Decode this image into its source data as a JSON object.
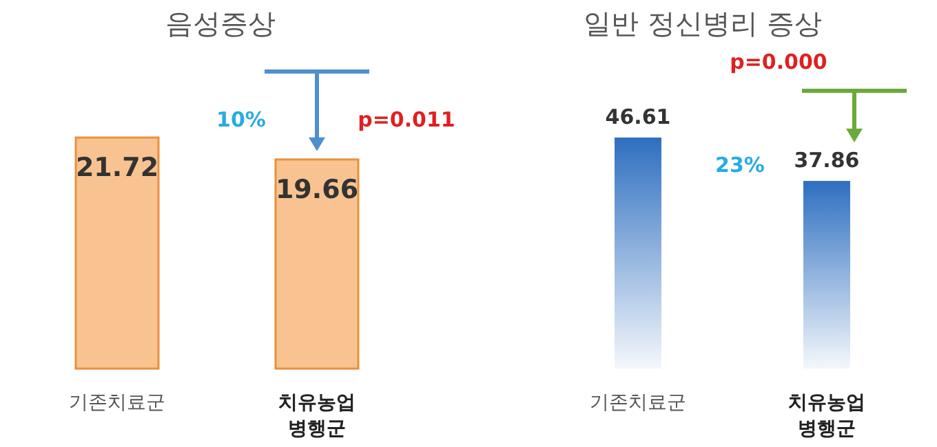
{
  "chart_data": [
    {
      "type": "bar",
      "title": "음성증상",
      "categories": [
        "기존치료군",
        "치유농업\n병행군"
      ],
      "values": [
        21.72,
        19.66
      ],
      "colors": [
        "#f9c391",
        "#f9c391"
      ],
      "data_labels": true,
      "annotations": [
        "10%",
        "p=0.011"
      ]
    },
    {
      "type": "bar",
      "title": "일반 정신병리 증상",
      "categories": [
        "기존치료군",
        "치유농업\n병행군"
      ],
      "values": [
        46.61,
        37.86
      ],
      "colors": [
        "#2e6fc0",
        "#2e6fc0"
      ],
      "data_labels": true,
      "annotations": [
        "p=0.000",
        "23%"
      ]
    }
  ]
}
